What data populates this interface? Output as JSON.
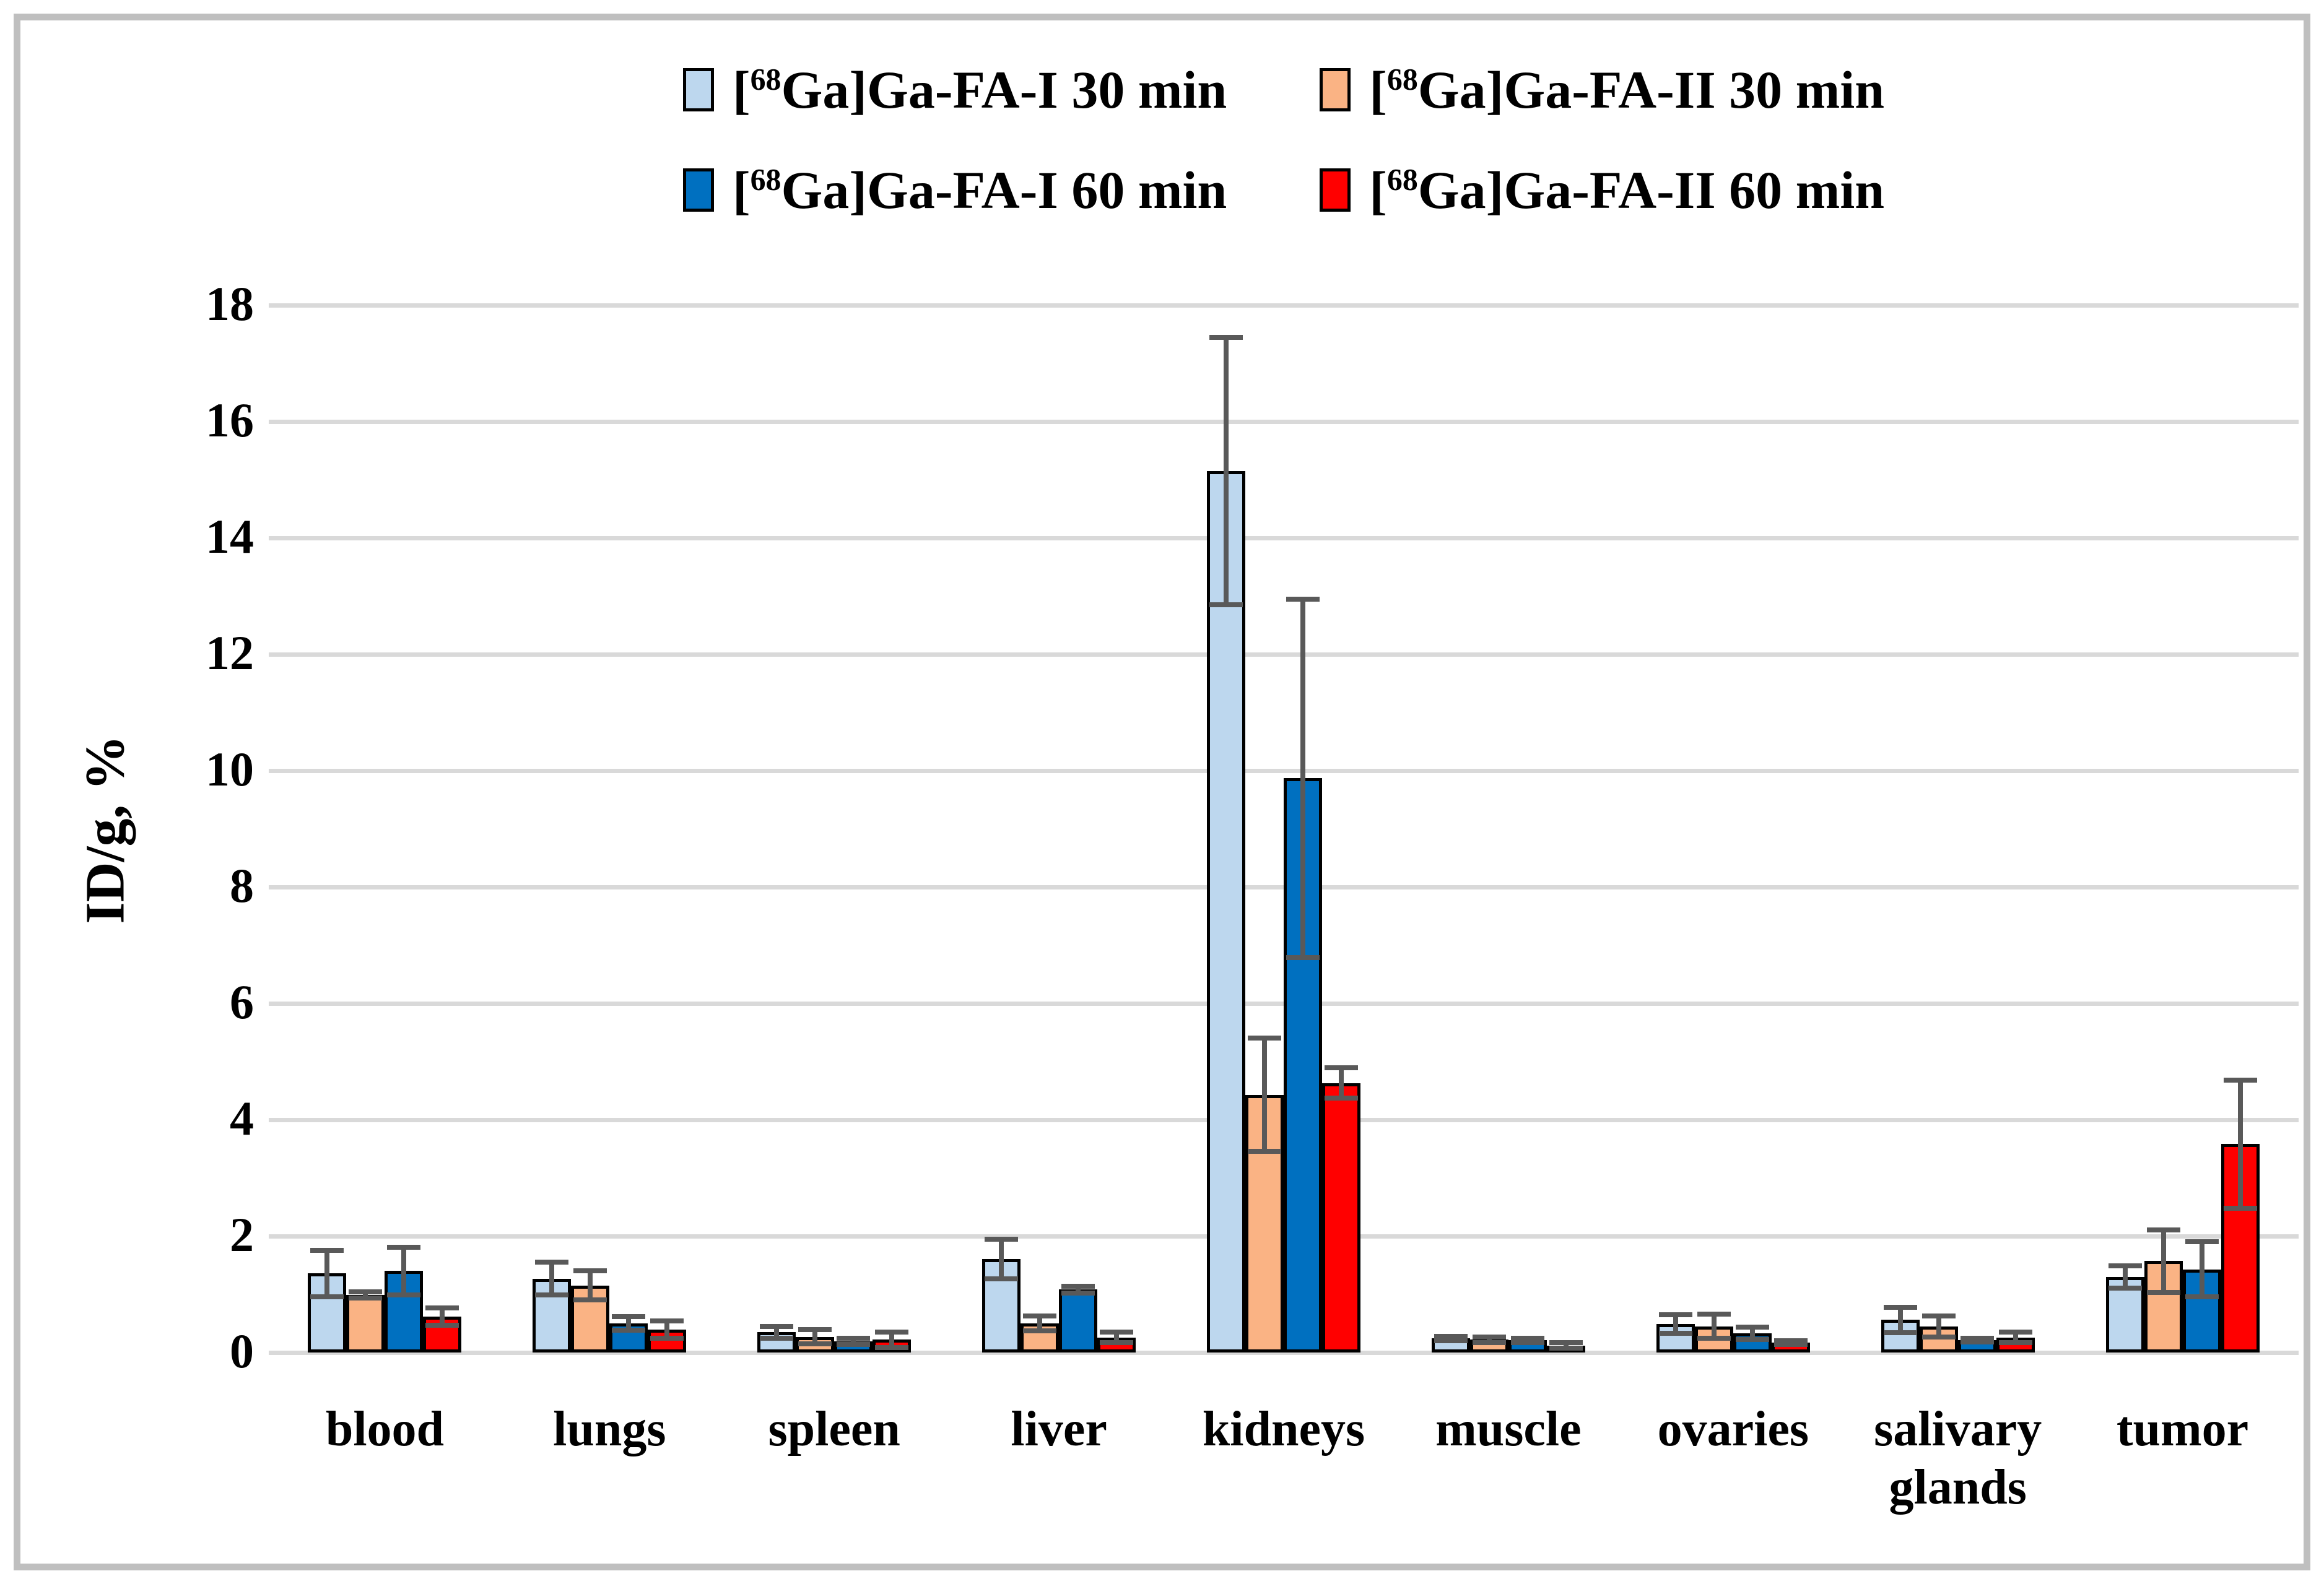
{
  "figure": {
    "background": "#FFFFFF",
    "border_color": "#BFBFBF"
  },
  "chart_data": {
    "type": "bar",
    "title": "",
    "xlabel": "",
    "ylabel": "ID/g, %",
    "ylim": [
      0,
      18
    ],
    "ytick_step": 2,
    "yticks": [
      0,
      2,
      4,
      6,
      8,
      10,
      12,
      14,
      16,
      18
    ],
    "grid": "horizontal",
    "gridline_color": "#D9D9D9",
    "error_bar_color": "#595959",
    "bar_border_color": "#000000",
    "legend_position": "top-center-two-rows",
    "categories": [
      "blood",
      "lungs",
      "spleen",
      "liver",
      "kidneys",
      "muscle",
      "ovaries",
      "salivary glands",
      "tumor"
    ],
    "series": [
      {
        "name": "[68Ga]Ga-FA-I 30 min",
        "color": "#BDD7EE",
        "values": [
          1.36,
          1.27,
          0.35,
          1.61,
          15.15,
          0.24,
          0.49,
          0.56,
          1.3
        ],
        "errors": [
          0.4,
          0.28,
          0.1,
          0.34,
          2.3,
          0.04,
          0.16,
          0.22,
          0.19
        ]
      },
      {
        "name": "[68Ga]Ga-FA-II 30 min",
        "color": "#FAB384",
        "values": [
          0.99,
          1.15,
          0.27,
          0.5,
          4.43,
          0.22,
          0.45,
          0.45,
          1.57
        ],
        "errors": [
          0.05,
          0.25,
          0.12,
          0.13,
          0.97,
          0.05,
          0.21,
          0.18,
          0.54
        ]
      },
      {
        "name": "[68Ga]Ga-FA-I 60 min",
        "color": "#0070C0",
        "values": [
          1.4,
          0.5,
          0.19,
          1.08,
          9.87,
          0.21,
          0.33,
          0.21,
          1.43
        ],
        "errors": [
          0.41,
          0.12,
          0.05,
          0.06,
          3.08,
          0.04,
          0.11,
          0.03,
          0.47
        ]
      },
      {
        "name": "[68Ga]Ga-FA-II 60 min",
        "color": "#FF0000",
        "values": [
          0.62,
          0.39,
          0.22,
          0.26,
          4.63,
          0.12,
          0.17,
          0.26,
          3.58
        ],
        "errors": [
          0.15,
          0.15,
          0.13,
          0.09,
          0.26,
          0.05,
          0.03,
          0.09,
          1.1
        ]
      }
    ]
  }
}
